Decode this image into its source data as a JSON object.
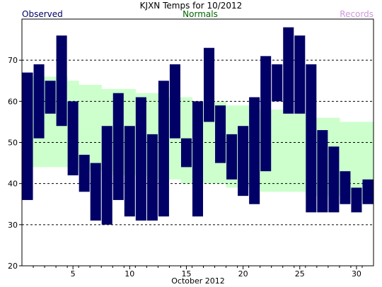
{
  "header": {
    "title": "KJXN Temps for 10/2012",
    "observed_label": "Observed",
    "normals_label": "Normals",
    "records_label": "Records"
  },
  "colors": {
    "observed": "#000066",
    "normals_fill": "#ccffcc",
    "normals_label": "#006600",
    "records_label": "#cc99dd",
    "grid": "#000000"
  },
  "chart_data": {
    "type": "bar",
    "title": "KJXN Temps for 10/2012",
    "xlabel": "October 2012",
    "ylabel": "",
    "xlim": [
      1,
      31
    ],
    "ylim": [
      20,
      80
    ],
    "x_ticks": [
      5,
      10,
      15,
      20,
      25,
      30
    ],
    "y_ticks": [
      20,
      30,
      40,
      50,
      60,
      70
    ],
    "grid_y": [
      30,
      40,
      50,
      60,
      70
    ],
    "days": [
      1,
      2,
      3,
      4,
      5,
      6,
      7,
      8,
      9,
      10,
      11,
      12,
      13,
      14,
      15,
      16,
      17,
      18,
      19,
      20,
      21,
      22,
      23,
      24,
      25,
      26,
      27,
      28,
      29,
      30,
      31
    ],
    "series": [
      {
        "name": "Observed",
        "high": [
          67,
          69,
          65,
          76,
          60,
          47,
          45,
          54,
          62,
          54,
          61,
          52,
          65,
          69,
          51,
          60,
          73,
          59,
          52,
          54,
          61,
          71,
          69,
          78,
          76,
          69,
          53,
          49,
          43,
          39,
          41
        ],
        "low": [
          36,
          51,
          57,
          54,
          42,
          38,
          31,
          30,
          36,
          32,
          31,
          31,
          32,
          51,
          44,
          32,
          55,
          45,
          41,
          37,
          35,
          43,
          60,
          57,
          57,
          33,
          33,
          33,
          35,
          33,
          35
        ]
      },
      {
        "name": "Normals",
        "high": [
          66,
          66,
          66,
          66,
          65,
          64,
          64,
          63,
          63,
          63,
          62,
          62,
          61,
          61,
          61,
          60,
          60,
          60,
          59,
          59,
          58,
          58,
          58,
          57,
          57,
          56,
          56,
          56,
          55,
          55,
          55
        ],
        "low": [
          44,
          44,
          44,
          44,
          44,
          43,
          43,
          43,
          42,
          42,
          42,
          41,
          41,
          41,
          40,
          40,
          40,
          40,
          39,
          39,
          39,
          38,
          38,
          38,
          38,
          37,
          37,
          37,
          37,
          36,
          36
        ]
      }
    ]
  }
}
